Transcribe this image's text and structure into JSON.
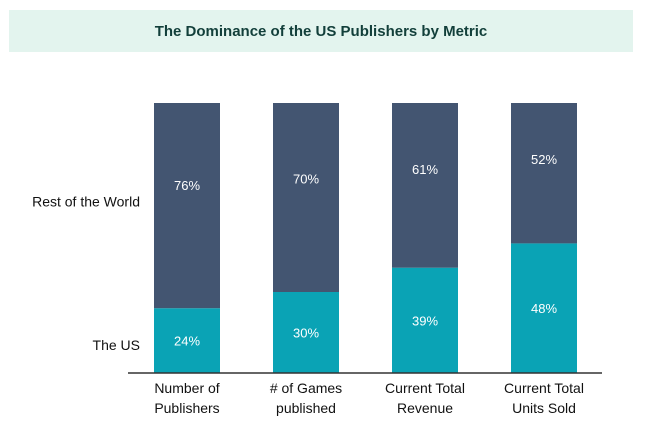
{
  "chart_data": {
    "type": "bar",
    "stacked": true,
    "percent": true,
    "title": "The Dominance of the US Publishers by Metric",
    "categories": [
      [
        "Number of",
        "Publishers"
      ],
      [
        "# of Games",
        "published"
      ],
      [
        "Current Total",
        "Revenue"
      ],
      [
        "Current Total",
        "Units Sold"
      ]
    ],
    "series": [
      {
        "name": "The US",
        "values": [
          24,
          30,
          39,
          48
        ],
        "labels": [
          "24%",
          "30%",
          "39%",
          "48%"
        ],
        "color": "#0aa3b5"
      },
      {
        "name": "Rest of the World",
        "values": [
          76,
          70,
          61,
          52
        ],
        "labels": [
          "76%",
          "70%",
          "61%",
          "52%"
        ],
        "color": "#435571"
      }
    ],
    "ylim": [
      0,
      100
    ],
    "label_color": "#ffffff",
    "axis_color": "#333333"
  }
}
